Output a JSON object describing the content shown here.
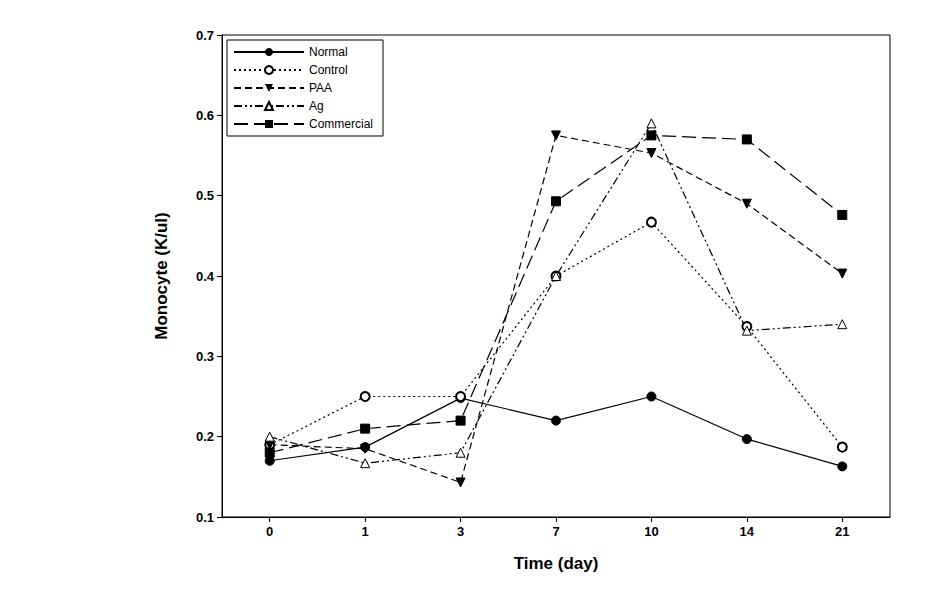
{
  "chart_data": {
    "type": "line",
    "x_label": "Time (day)",
    "y_label": "Monocyte (K/ul)",
    "categories": [
      "0",
      "1",
      "3",
      "7",
      "10",
      "14",
      "21"
    ],
    "ylim": [
      0.1,
      0.7
    ],
    "yticks": [
      0.1,
      0.2,
      0.3,
      0.4,
      0.5,
      0.6,
      0.7
    ],
    "grid": false,
    "legend": "upper left",
    "series": [
      {
        "name": "Normal",
        "color": "#000000",
        "marker": "circle",
        "line_style": "solid",
        "values": [
          0.17,
          0.187,
          0.248,
          0.22,
          0.25,
          0.197,
          0.163
        ]
      },
      {
        "name": "Control",
        "color": "#000000",
        "marker": "open circle",
        "line_style": "dotted",
        "values": [
          0.19,
          0.25,
          0.25,
          0.4,
          0.467,
          0.337,
          0.187
        ]
      },
      {
        "name": "PAA",
        "color": "#000000",
        "marker": "triangle down",
        "line_style": "dashed",
        "values": [
          0.19,
          0.185,
          0.143,
          0.575,
          0.553,
          0.49,
          0.403
        ]
      },
      {
        "name": "Ag",
        "color": "#000000",
        "marker": "open triangle",
        "line_style": "dashdotdot",
        "values": [
          0.2,
          0.167,
          0.18,
          0.4,
          0.59,
          0.332,
          0.34
        ]
      },
      {
        "name": "Commercial",
        "color": "#000000",
        "marker": "square",
        "line_style": "longdash",
        "values": [
          0.18,
          0.21,
          0.22,
          0.493,
          0.575,
          0.57,
          0.476
        ]
      }
    ]
  }
}
